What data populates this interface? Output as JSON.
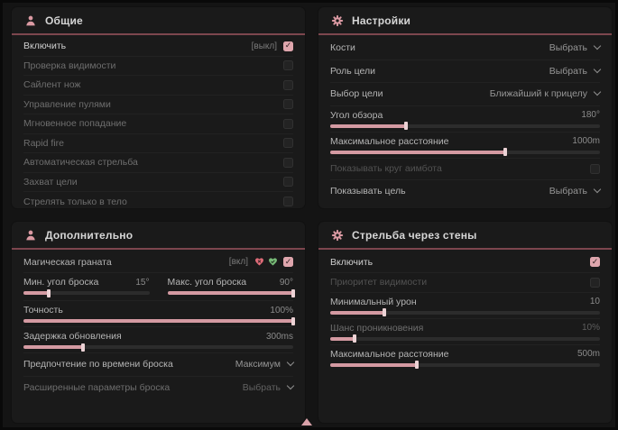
{
  "colors": {
    "background": "#141414",
    "panel": "#1a1a1a",
    "accent_pink": "#dda3ab",
    "header_underline": "#7d464e",
    "slider_fill": "#d49aa2",
    "checkbox_checked": "#dfa6ad",
    "text_primary": "#cfcfcf",
    "text_muted": "#8b8b8b",
    "text_disabled": "#525252",
    "heart_pink": "#e06c78",
    "heart_green": "#78bb78"
  },
  "icons": {
    "general_header": "person-icon",
    "settings_header": "gear-icon",
    "additional_header": "person-icon",
    "wallbang_header": "gear-icon",
    "grenade_flags": [
      "heart-cross-icon",
      "heart-check-icon"
    ]
  },
  "panels": {
    "general": {
      "title": "Общие",
      "rows": [
        {
          "label": "Включить",
          "tag": "[выкл]",
          "checked": true
        },
        {
          "label": "Проверка видимости",
          "checked": false
        },
        {
          "label": "Сайлент нож",
          "checked": false
        },
        {
          "label": "Управление пулями",
          "checked": false
        },
        {
          "label": "Мгновенное попадание",
          "checked": false
        },
        {
          "label": "Rapid fire",
          "checked": false
        },
        {
          "label": "Автоматическая стрельба",
          "checked": false
        },
        {
          "label": "Захват цели",
          "checked": false
        },
        {
          "label": "Стрелять только в тело",
          "checked": false
        }
      ]
    },
    "settings": {
      "title": "Настройки",
      "bones_label": "Кости",
      "bones_value": "Выбрать",
      "target_role_label": "Роль цели",
      "target_role_value": "Выбрать",
      "target_select_label": "Выбор цели",
      "target_select_value": "Ближайший к прицелу",
      "fov_label": "Угол обзора",
      "fov_value": "180°",
      "fov_fill": 28,
      "distance_label": "Максимальное расстояние",
      "distance_value": "1000m",
      "distance_fill": 65,
      "show_circle_label": "Показывать круг аимбота",
      "show_circle_checked": false,
      "show_target_label": "Показывать цель",
      "show_target_value": "Выбрать"
    },
    "additional": {
      "title": "Дополнительно",
      "magic_grenade_label": "Магическая граната",
      "magic_grenade_tag": "[вкл]",
      "magic_grenade_checked": true,
      "min_angle_label": "Мин. угол броска",
      "min_angle_value": "15°",
      "min_angle_fill": 20,
      "max_angle_label": "Макс. угол броска",
      "max_angle_value": "90°",
      "max_angle_fill": 100,
      "accuracy_label": "Точность",
      "accuracy_value": "100%",
      "accuracy_fill": 100,
      "delay_label": "Задержка обновления",
      "delay_value": "300ms",
      "delay_fill": 22,
      "time_pref_label": "Предпочтение по времени броска",
      "time_pref_value": "Максимум",
      "advanced_label": "Расширенные параметры броска",
      "advanced_value": "Выбрать"
    },
    "wallbang": {
      "title": "Стрельба через стены",
      "enable_label": "Включить",
      "enable_checked": true,
      "visibility_label": "Приоритет видимости",
      "visibility_checked": false,
      "min_damage_label": "Минимальный урон",
      "min_damage_value": "10",
      "min_damage_fill": 20,
      "penetration_label": "Шанс проникновения",
      "penetration_value": "10%",
      "penetration_fill": 9,
      "distance_label": "Максимальное расстояние",
      "distance_value": "500m",
      "distance_fill": 32
    }
  }
}
